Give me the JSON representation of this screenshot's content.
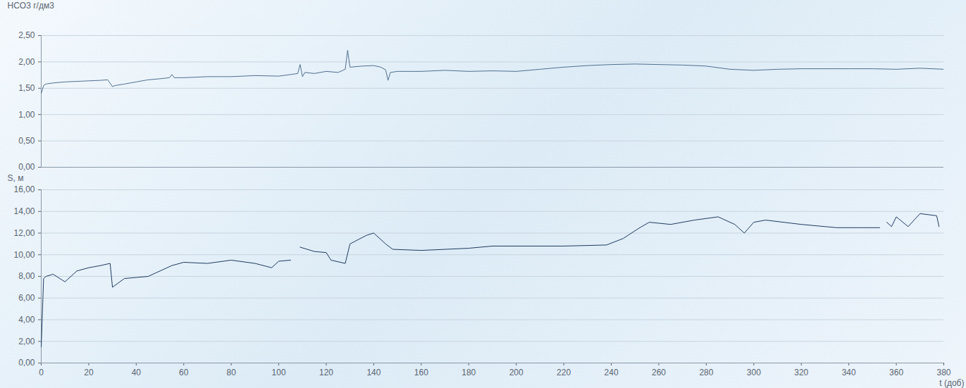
{
  "chart_data": [
    {
      "type": "line",
      "y_label": "HCO3 г/дм3",
      "x": [
        0,
        1,
        2,
        5,
        10,
        15,
        20,
        25,
        28,
        30,
        31,
        35,
        40,
        45,
        50,
        54,
        55,
        56,
        60,
        70,
        80,
        90,
        100,
        105,
        108,
        109,
        110,
        111,
        115,
        120,
        125,
        128,
        129,
        130,
        135,
        140,
        143,
        145,
        146,
        147,
        150,
        160,
        170,
        180,
        190,
        200,
        210,
        220,
        230,
        240,
        250,
        260,
        270,
        280,
        290,
        300,
        310,
        320,
        330,
        340,
        350,
        360,
        370,
        380
      ],
      "series": [
        {
          "color": "#4f6f8f",
          "values": [
            1.4,
            1.55,
            1.58,
            1.6,
            1.62,
            1.63,
            1.64,
            1.65,
            1.66,
            1.53,
            1.55,
            1.58,
            1.62,
            1.66,
            1.68,
            1.7,
            1.76,
            1.7,
            1.7,
            1.72,
            1.72,
            1.74,
            1.73,
            1.76,
            1.78,
            1.95,
            1.72,
            1.8,
            1.78,
            1.82,
            1.8,
            1.86,
            2.22,
            1.9,
            1.92,
            1.93,
            1.9,
            1.85,
            1.65,
            1.8,
            1.82,
            1.82,
            1.84,
            1.82,
            1.83,
            1.82,
            1.86,
            1.9,
            1.93,
            1.95,
            1.96,
            1.95,
            1.94,
            1.92,
            1.86,
            1.84,
            1.86,
            1.87,
            1.87,
            1.87,
            1.87,
            1.86,
            1.88,
            1.86
          ]
        }
      ],
      "xlim": [
        0,
        380
      ],
      "ylim": [
        0,
        2.5
      ],
      "yticks": [
        {
          "value": 0,
          "label": "0,00"
        },
        {
          "value": 0.5,
          "label": "0,50"
        },
        {
          "value": 1,
          "label": "1,00"
        },
        {
          "value": 1.5,
          "label": "1,50"
        },
        {
          "value": 2,
          "label": "2,00"
        },
        {
          "value": 2.5,
          "label": "2,50"
        }
      ],
      "grid": true,
      "tick_labels": "y"
    },
    {
      "type": "line",
      "y_label": "S, м",
      "x_label": "t (доб)",
      "x": [
        0,
        1,
        2,
        5,
        10,
        15,
        20,
        25,
        29,
        30,
        35,
        40,
        45,
        50,
        55,
        60,
        70,
        80,
        90,
        97,
        100,
        105,
        106,
        109,
        115,
        120,
        122,
        128,
        130,
        137,
        140,
        145,
        148,
        160,
        180,
        190,
        220,
        238,
        245,
        252,
        256,
        265,
        275,
        285,
        292,
        296,
        300,
        305,
        320,
        335,
        353,
        354,
        356,
        358,
        360,
        365,
        370,
        377,
        378
      ],
      "series": [
        {
          "color": "#1e3a5f",
          "values": [
            1.5,
            7.8,
            8.0,
            8.2,
            7.5,
            8.5,
            8.8,
            9.0,
            9.2,
            7.0,
            7.8,
            7.9,
            8.0,
            8.5,
            9.0,
            9.3,
            9.2,
            9.5,
            9.2,
            8.8,
            9.4,
            9.5,
            null,
            10.7,
            10.3,
            10.2,
            9.5,
            9.2,
            11.0,
            11.8,
            12.0,
            11.0,
            10.5,
            10.4,
            10.6,
            10.8,
            10.8,
            10.9,
            11.5,
            12.5,
            13.0,
            12.8,
            13.2,
            13.5,
            12.8,
            12.0,
            13.0,
            13.2,
            12.8,
            12.5,
            12.5,
            null,
            13.0,
            12.6,
            13.5,
            12.6,
            13.8,
            13.6,
            12.6
          ]
        }
      ],
      "xlim": [
        0,
        380
      ],
      "xticks": [
        0,
        20,
        40,
        60,
        80,
        100,
        120,
        140,
        160,
        180,
        200,
        220,
        240,
        260,
        280,
        300,
        320,
        340,
        360,
        380
      ],
      "ylim": [
        0,
        16
      ],
      "yticks": [
        {
          "value": 0,
          "label": "0,00"
        },
        {
          "value": 2,
          "label": "2,00"
        },
        {
          "value": 4,
          "label": "4,00"
        },
        {
          "value": 6,
          "label": "6,00"
        },
        {
          "value": 8,
          "label": "8,00"
        },
        {
          "value": 10,
          "label": "10,00"
        },
        {
          "value": 12,
          "label": "12,00"
        },
        {
          "value": 14,
          "label": "14,00"
        },
        {
          "value": 16,
          "label": "16,00"
        }
      ],
      "grid": true
    }
  ]
}
